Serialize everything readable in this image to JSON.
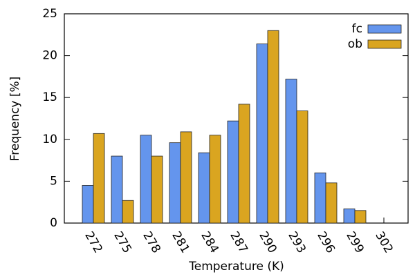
{
  "chart_data": {
    "type": "bar",
    "x_label": "Temperature (K)",
    "y_label": "Frequency [%]",
    "categories": [
      "272",
      "275",
      "278",
      "281",
      "284",
      "287",
      "290",
      "293",
      "296",
      "299",
      "302"
    ],
    "series": [
      {
        "name": "fc",
        "color": "#6495ed",
        "values": [
          4.5,
          8.0,
          10.5,
          9.6,
          8.4,
          12.2,
          21.4,
          17.2,
          6.0,
          1.7,
          0
        ]
      },
      {
        "name": "ob",
        "color": "#daa520",
        "values": [
          10.7,
          2.7,
          8.0,
          10.9,
          10.5,
          14.2,
          23.0,
          13.4,
          4.8,
          1.5,
          0
        ]
      }
    ],
    "ylim": [
      0,
      25
    ],
    "yticks": [
      0,
      5,
      10,
      15,
      20,
      25
    ],
    "grid": false,
    "legend": "top-right"
  }
}
